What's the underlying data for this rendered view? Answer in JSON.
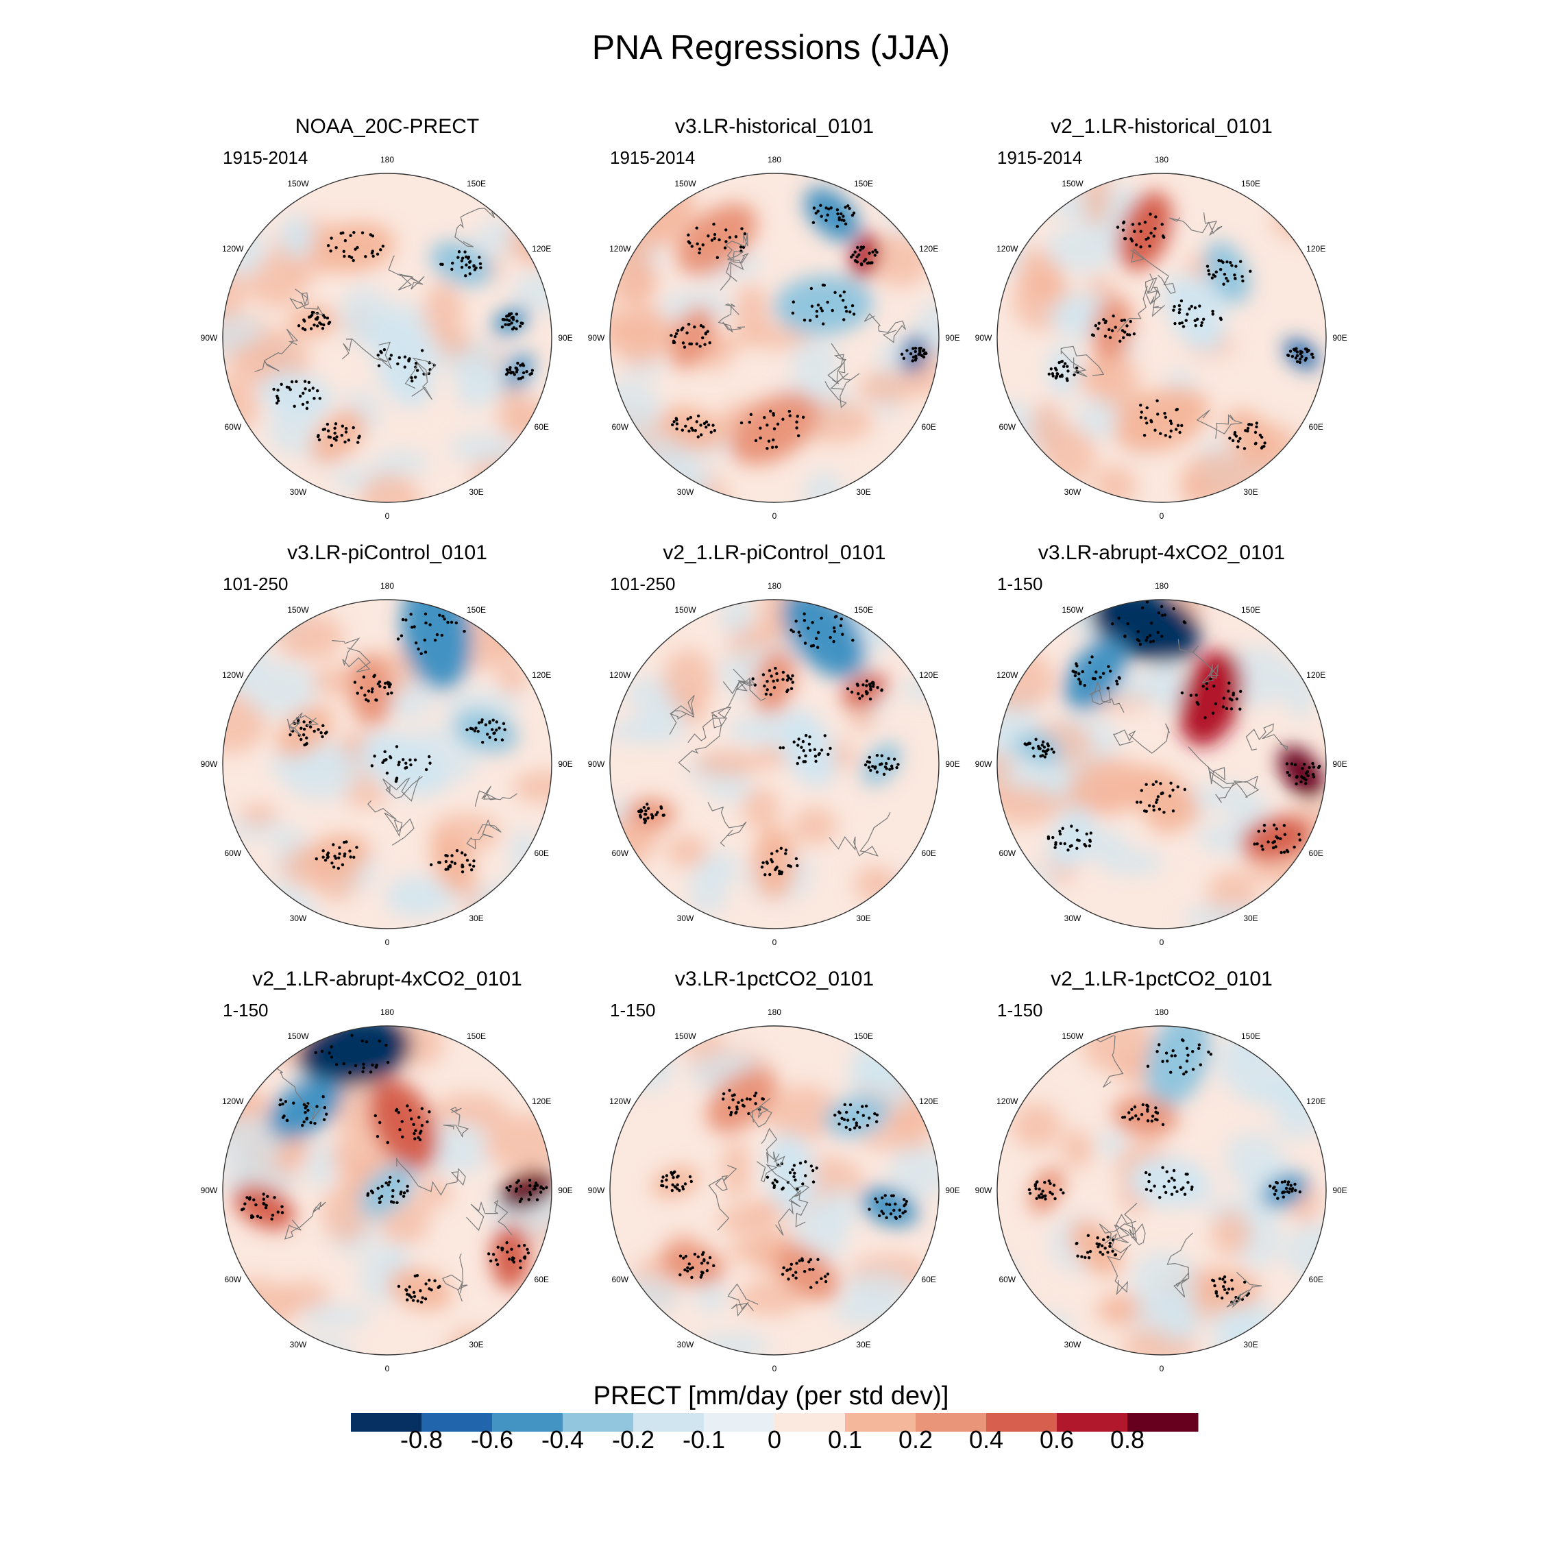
{
  "title": "PNA Regressions (JJA)",
  "chart_data": {
    "type": "heatmap",
    "projection": "north polar stereographic",
    "variable": "PRECT",
    "colorbar": {
      "title": "PRECT [mm/day (per std dev)]",
      "tick_labels": [
        "-0.8",
        "-0.6",
        "-0.4",
        "-0.2",
        "-0.1",
        "0",
        "0.1",
        "0.2",
        "0.4",
        "0.6",
        "0.8"
      ],
      "colors": [
        "#053061",
        "#2166ac",
        "#4393c3",
        "#92c5de",
        "#d1e5f0",
        "#e8f0f5",
        "#fbe8df",
        "#f4b79c",
        "#e9957a",
        "#d6604d",
        "#b2182b",
        "#67001f"
      ]
    },
    "longitude_labels": [
      "180",
      "150E",
      "120E",
      "90E",
      "60E",
      "30E",
      "0",
      "30W",
      "60W",
      "90W",
      "120W",
      "150W"
    ],
    "panels": [
      {
        "title": "NOAA_20C-PRECT",
        "period": "1915-2014"
      },
      {
        "title": "v3.LR-historical_0101",
        "period": "1915-2014"
      },
      {
        "title": "v2_1.LR-historical_0101",
        "period": "1915-2014"
      },
      {
        "title": "v3.LR-piControl_0101",
        "period": "101-250"
      },
      {
        "title": "v2_1.LR-piControl_0101",
        "period": "101-250"
      },
      {
        "title": "v3.LR-abrupt-4xCO2_0101",
        "period": "1-150"
      },
      {
        "title": "v2_1.LR-abrupt-4xCO2_0101",
        "period": "1-150"
      },
      {
        "title": "v3.LR-1pctCO2_0101",
        "period": "1-150"
      },
      {
        "title": "v2_1.LR-1pctCO2_0101",
        "period": "1-150"
      }
    ]
  }
}
